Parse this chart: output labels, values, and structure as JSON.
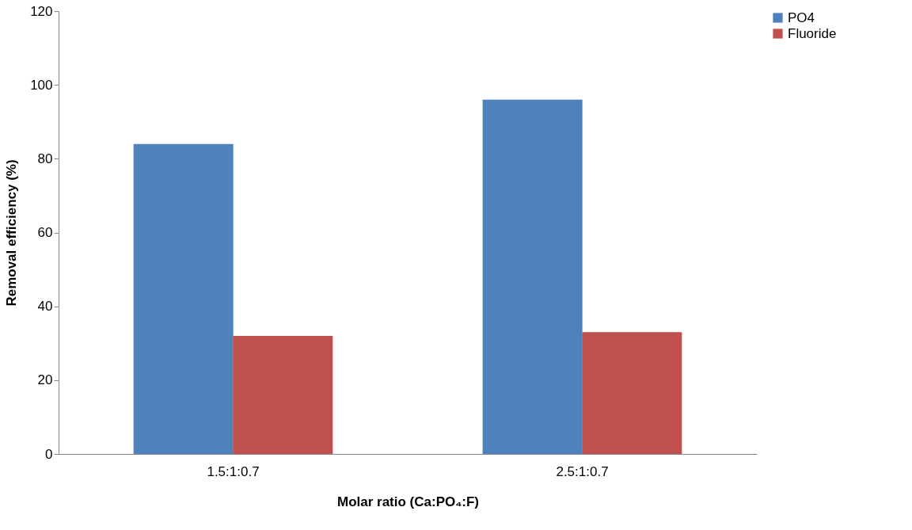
{
  "chart_data": {
    "type": "bar",
    "xlabel": "Molar ratio (Ca:PO₄:F)",
    "ylabel": "Removal efficiency (%)",
    "categories": [
      "1.5:1:0.7",
      "2.5:1:0.7"
    ],
    "series": [
      {
        "name": "PO4",
        "color": "#4f81bd",
        "values": [
          84,
          96
        ]
      },
      {
        "name": "Fluoride",
        "color": "#c0504d",
        "values": [
          32,
          33
        ]
      }
    ],
    "ylim": [
      0,
      120
    ],
    "yticks": [
      0,
      20,
      40,
      60,
      80,
      100,
      120
    ],
    "grid": false,
    "legend": "right"
  }
}
